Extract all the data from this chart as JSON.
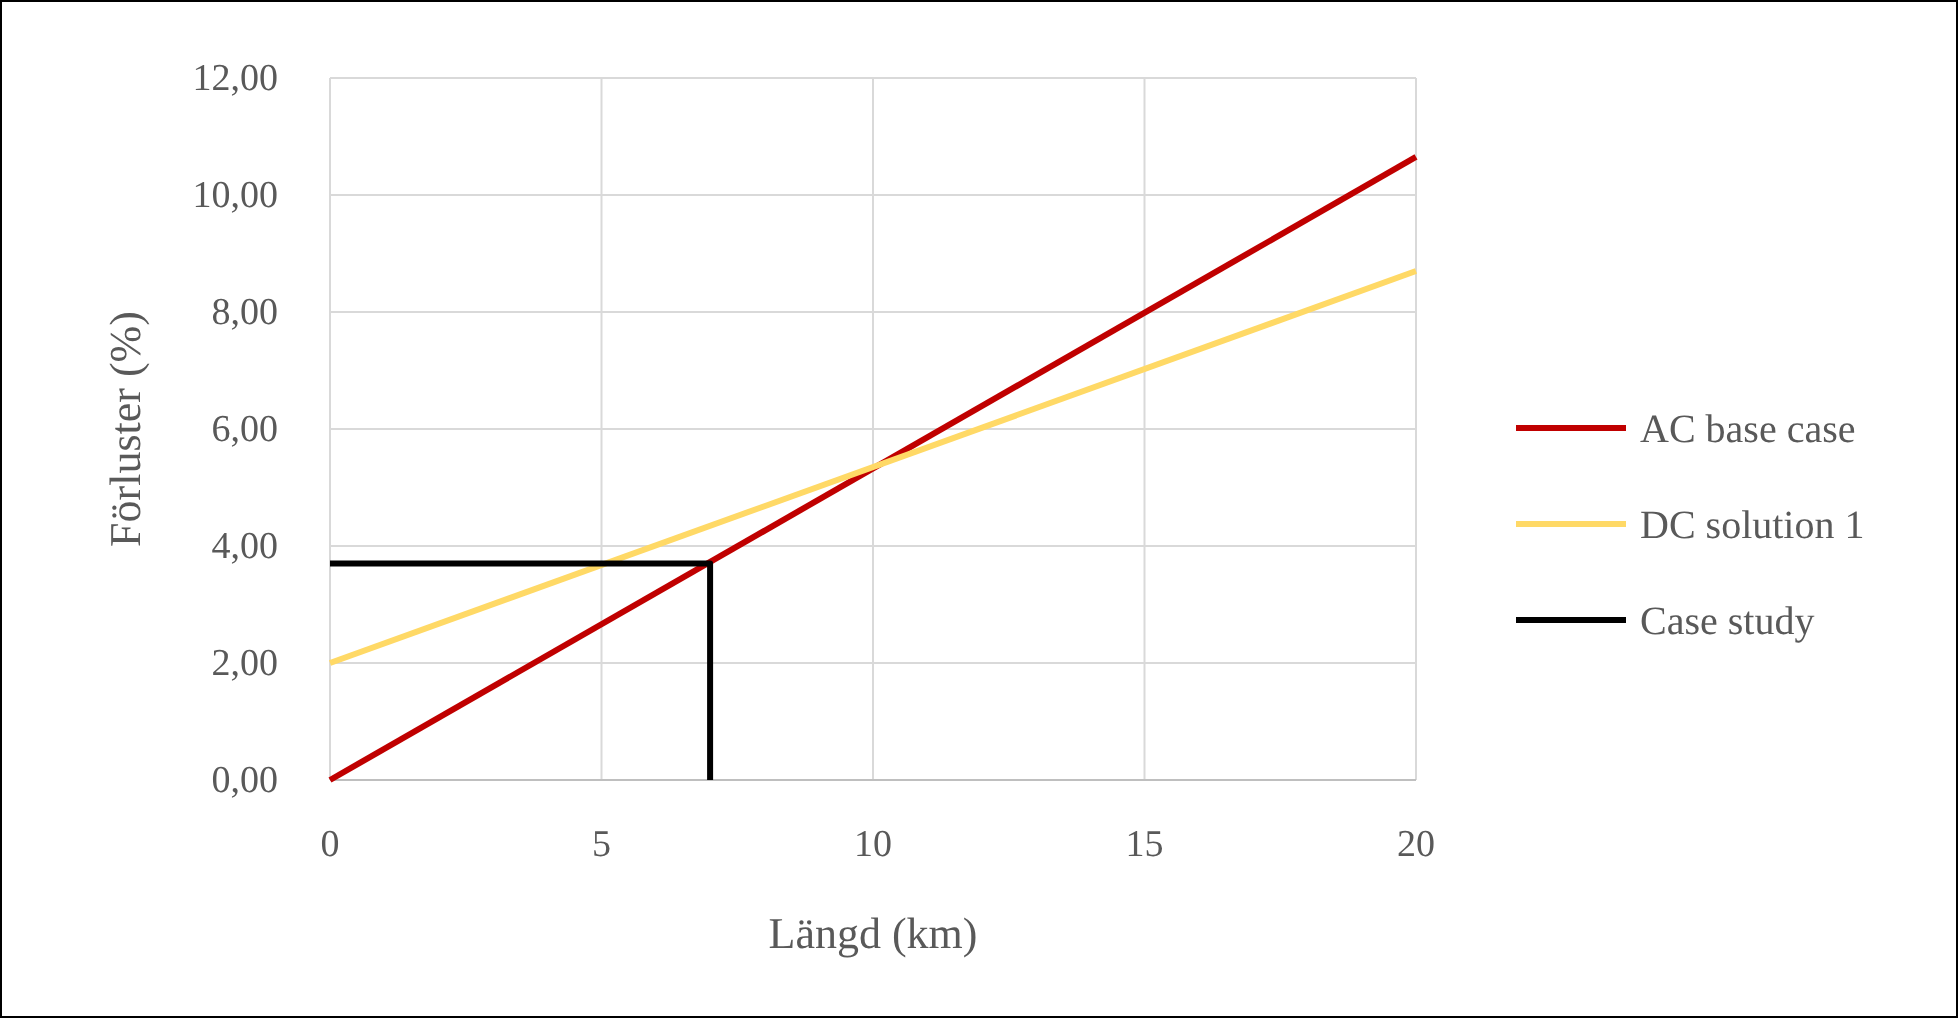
{
  "chart_data": {
    "type": "line",
    "xlabel": "Längd (km)",
    "ylabel": "Förluster (%)",
    "xlim": [
      0,
      20
    ],
    "xticks": [
      0,
      5,
      10,
      15,
      20
    ],
    "ylim": [
      0,
      12
    ],
    "yticks": [
      {
        "value": 0,
        "label": "0,00"
      },
      {
        "value": 2,
        "label": "2,00"
      },
      {
        "value": 4,
        "label": "4,00"
      },
      {
        "value": 6,
        "label": "6,00"
      },
      {
        "value": 8,
        "label": "8,00"
      },
      {
        "value": 10,
        "label": "10,00"
      },
      {
        "value": 12,
        "label": "12,00"
      }
    ],
    "grid": true,
    "legend": "right",
    "line_style": "solid",
    "series": [
      {
        "name": "AC base case",
        "color": "#c00000",
        "x": [
          0,
          20
        ],
        "values": [
          0,
          10.65
        ]
      },
      {
        "name": "DC solution 1",
        "color": "#ffd966",
        "x": [
          0,
          20
        ],
        "values": [
          2,
          8.7
        ]
      },
      {
        "name": "Case study",
        "color": "#000000",
        "x": [
          0,
          7,
          7
        ],
        "values": [
          3.7,
          3.7,
          0
        ]
      }
    ]
  }
}
